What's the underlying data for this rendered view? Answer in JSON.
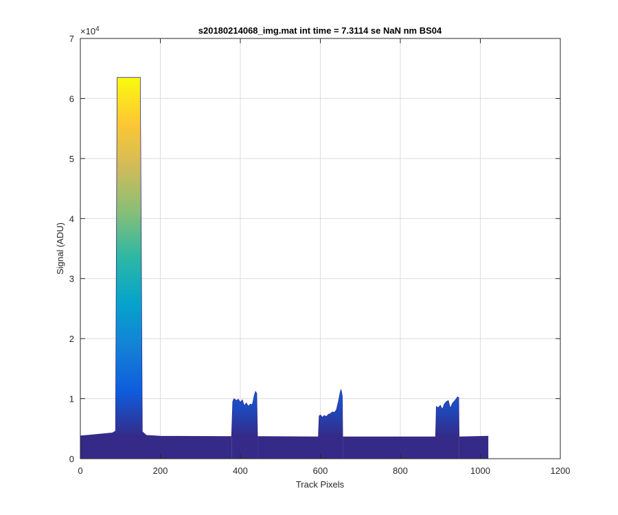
{
  "chart_data": {
    "type": "area",
    "title": "s20180214068_img.mat int time = 7.3114 se  NaN nm BS04",
    "xlabel": "Track Pixels",
    "ylabel": "Signal (ADU)",
    "xlim": [
      0,
      1200
    ],
    "ylim": [
      0,
      70000
    ],
    "x_ticks": [
      0,
      200,
      400,
      600,
      800,
      1000,
      1200
    ],
    "y_ticks": [
      0,
      1,
      2,
      3,
      4,
      5,
      6,
      7
    ],
    "y_exponent": "×10",
    "y_exponent_power": "4",
    "grid": true,
    "colormap": [
      "#352a87",
      "#0f5cdd",
      "#1481d6",
      "#06a4ca",
      "#2eb7a4",
      "#87bf77",
      "#d1bb59",
      "#fec832",
      "#f9fb0e"
    ],
    "baseline": 3800,
    "series": [
      {
        "x": [
          0,
          80,
          88,
          92,
          150,
          155,
          165,
          200,
          378
        ],
        "y": [
          3800,
          4300,
          4600,
          63500,
          63500,
          4500,
          3900,
          3750,
          3700
        ]
      },
      {
        "x": [
          378,
          381,
          384,
          390,
          395,
          400,
          405,
          410,
          415,
          420,
          425,
          430,
          435,
          438,
          441,
          443
        ],
        "y": [
          3700,
          9500,
          10000,
          9700,
          9900,
          9400,
          9800,
          8800,
          9300,
          8700,
          9100,
          9000,
          10600,
          11200,
          10900,
          3700
        ]
      },
      {
        "x": [
          443,
          595,
          597,
          600,
          605,
          610,
          615,
          620,
          625,
          630,
          635,
          640,
          645,
          650,
          652,
          655,
          656
        ],
        "y": [
          3700,
          3650,
          7100,
          7300,
          6900,
          7200,
          7000,
          7400,
          7500,
          7800,
          7700,
          8100,
          9500,
          11200,
          11500,
          10400,
          3650
        ]
      },
      {
        "x": [
          656,
          888,
          890,
          895,
          900,
          905,
          910,
          915,
          920,
          925,
          930,
          935,
          940,
          943,
          946,
          947
        ],
        "y": [
          3650,
          3650,
          8700,
          8500,
          8900,
          8200,
          9100,
          9500,
          9700,
          8400,
          9200,
          9600,
          10000,
          10300,
          10200,
          3650
        ]
      },
      {
        "x": [
          947,
          1020
        ],
        "y": [
          3650,
          3750
        ]
      }
    ]
  }
}
